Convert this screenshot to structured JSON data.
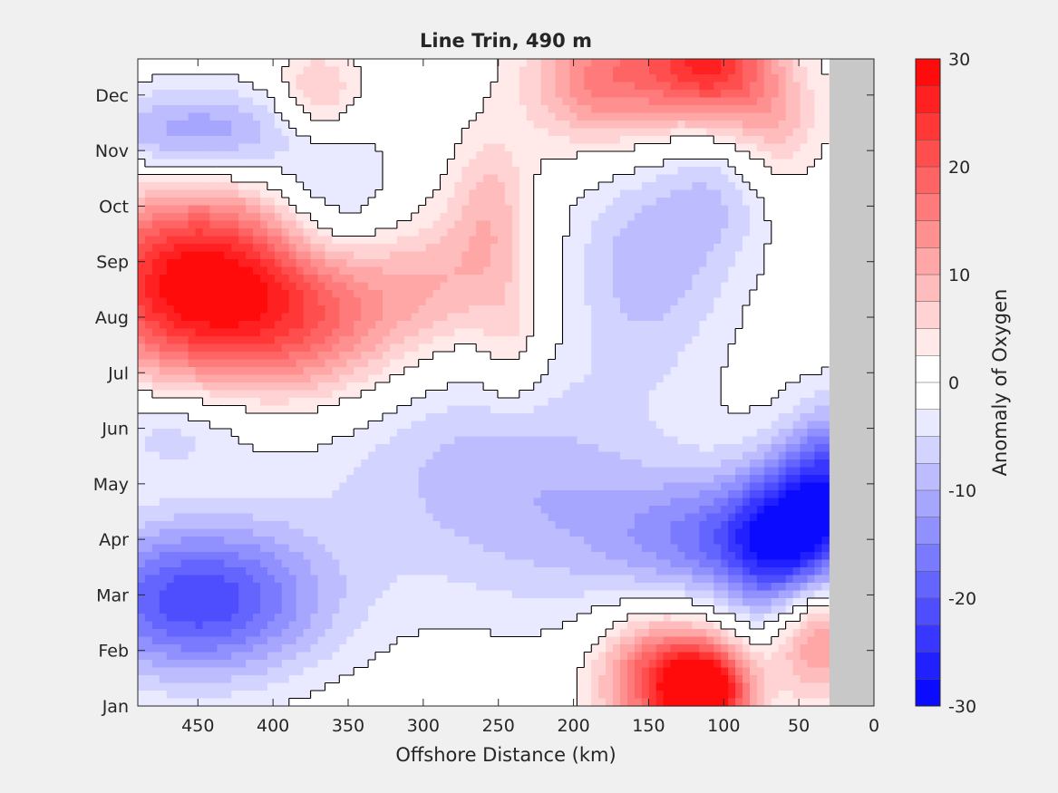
{
  "chart_data": {
    "type": "heatmap",
    "title": "Line Trin, 490 m",
    "xlabel": "Offshore Distance (km)",
    "ylabel": "",
    "xlim": [
      490,
      0
    ],
    "x_reversed": true,
    "x_ticks": [
      450,
      400,
      350,
      300,
      250,
      200,
      150,
      100,
      50,
      0
    ],
    "y_ticks": [
      "Jan",
      "Feb",
      "Mar",
      "Apr",
      "May",
      "Jun",
      "Jul",
      "Aug",
      "Sep",
      "Oct",
      "Nov",
      "Dec"
    ],
    "no_data_region_km": [
      30,
      0
    ],
    "zero_contour": true,
    "colorbar": {
      "label": "Anomaly of Oxygen",
      "range": [
        -30,
        30
      ],
      "tick_values": [
        -30,
        -20,
        -10,
        0,
        10,
        20,
        30
      ],
      "tick_labels": [
        "-30",
        "-20",
        "-10",
        "0",
        "10",
        "20",
        "30"
      ],
      "levels": 24,
      "colormap": "blue-white-red",
      "low_color": "#0000ff",
      "mid_color": "#ffffff",
      "high_color": "#ff0000"
    },
    "anomaly_features": [
      {
        "km": 450,
        "month": 7.6,
        "value": 30,
        "sx": 55,
        "sy": 1.2
      },
      {
        "km": 370,
        "month": 6.8,
        "value": 12,
        "sx": 45,
        "sy": 1.0
      },
      {
        "km": 290,
        "month": 7.6,
        "value": 8,
        "sx": 40,
        "sy": 0.9
      },
      {
        "km": 255,
        "month": 9.0,
        "value": 8,
        "sx": 20,
        "sy": 1.0
      },
      {
        "km": 240,
        "month": 6.5,
        "value": 5,
        "sx": 15,
        "sy": 0.8
      },
      {
        "km": 180,
        "month": 11.3,
        "value": 16,
        "sx": 35,
        "sy": 0.9
      },
      {
        "km": 110,
        "month": 11.6,
        "value": 24,
        "sx": 30,
        "sy": 0.8
      },
      {
        "km": 70,
        "month": 10.5,
        "value": 9,
        "sx": 25,
        "sy": 0.8
      },
      {
        "km": 370,
        "month": 11.0,
        "value": 9,
        "sx": 20,
        "sy": 0.6
      },
      {
        "km": 140,
        "month": 0.5,
        "value": 22,
        "sx": 30,
        "sy": 0.8
      },
      {
        "km": 110,
        "month": 0.2,
        "value": 26,
        "sx": 20,
        "sy": 0.6
      },
      {
        "km": 40,
        "month": 1.3,
        "value": 15,
        "sx": 20,
        "sy": 0.8
      },
      {
        "km": 450,
        "month": 1.9,
        "value": -22,
        "sx": 60,
        "sy": 1.0
      },
      {
        "km": 450,
        "month": 10.3,
        "value": -13,
        "sx": 55,
        "sy": 0.6
      },
      {
        "km": 360,
        "month": 9.0,
        "value": -8,
        "sx": 30,
        "sy": 0.8
      },
      {
        "km": 100,
        "month": 3.0,
        "value": -14,
        "sx": 50,
        "sy": 0.8
      },
      {
        "km": 60,
        "month": 3.0,
        "value": -20,
        "sx": 25,
        "sy": 1.0
      },
      {
        "km": 30,
        "month": 4.0,
        "value": -18,
        "sx": 20,
        "sy": 1.0
      },
      {
        "km": 210,
        "month": 3.5,
        "value": -7,
        "sx": 70,
        "sy": 1.5
      },
      {
        "km": 150,
        "month": 8.0,
        "value": -9,
        "sx": 40,
        "sy": 1.5
      },
      {
        "km": 100,
        "month": 9.5,
        "value": -6,
        "sx": 25,
        "sy": 1.0
      },
      {
        "km": 470,
        "month": 5.0,
        "value": -7,
        "sx": 40,
        "sy": 0.6
      },
      {
        "km": 300,
        "month": 4.5,
        "value": -5,
        "sx": 80,
        "sy": 1.5
      }
    ]
  }
}
